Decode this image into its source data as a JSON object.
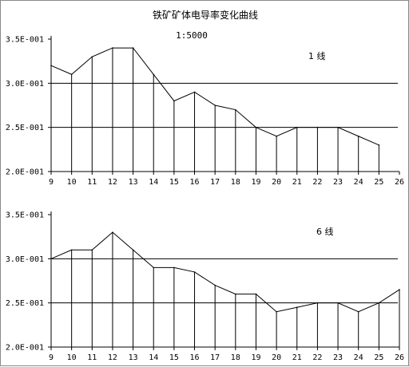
{
  "title": "铁矿矿体电导率变化曲线",
  "chart_data": [
    {
      "type": "line",
      "title": "铁矿矿体电导率变化曲线",
      "subtitle": "1:5000",
      "series_label": "1 线",
      "x": [
        9,
        10,
        11,
        12,
        13,
        14,
        15,
        16,
        17,
        18,
        19,
        20,
        21,
        22,
        23,
        24,
        25,
        26
      ],
      "x_ticks": [
        "9",
        "10",
        "11",
        "12",
        "13",
        "14",
        "15",
        "16",
        "17",
        "18",
        "19",
        "20",
        "21",
        "22",
        "23",
        "24",
        "25",
        "26"
      ],
      "series": [
        {
          "x": [
            9,
            10,
            11,
            12,
            13,
            14,
            15,
            16,
            17,
            18,
            19,
            20,
            21,
            22,
            23,
            24,
            25
          ],
          "values": [
            0.32,
            0.31,
            0.33,
            0.34,
            0.34,
            0.31,
            0.28,
            0.29,
            0.275,
            0.27,
            0.25,
            0.24,
            0.25,
            0.25,
            0.25,
            0.24,
            0.23
          ]
        }
      ],
      "ylim": [
        0.2,
        0.35
      ],
      "y_ticks": [
        "2.0E-001",
        "2.5E-001",
        "3.0E-001",
        "3.5E-001"
      ],
      "y_tick_values": [
        0.2,
        0.25,
        0.3,
        0.35
      ],
      "reference_lines": [
        0.3,
        0.25
      ],
      "drop_lines": true
    },
    {
      "type": "line",
      "series_label": "6 线",
      "x": [
        9,
        10,
        11,
        12,
        13,
        14,
        15,
        16,
        17,
        18,
        19,
        20,
        21,
        22,
        23,
        24,
        25,
        26
      ],
      "x_ticks": [
        "9",
        "10",
        "11",
        "12",
        "13",
        "14",
        "15",
        "16",
        "17",
        "18",
        "19",
        "20",
        "21",
        "22",
        "23",
        "24",
        "25",
        "26"
      ],
      "series": [
        {
          "x": [
            9,
            10,
            11,
            12,
            13,
            14,
            15,
            16,
            17,
            18,
            19,
            20,
            21,
            22,
            23,
            24,
            25,
            26
          ],
          "values": [
            0.3,
            0.31,
            0.31,
            0.33,
            0.31,
            0.29,
            0.29,
            0.285,
            0.27,
            0.26,
            0.26,
            0.24,
            0.245,
            0.25,
            0.25,
            0.24,
            0.25,
            0.265
          ]
        }
      ],
      "ylim": [
        0.2,
        0.35
      ],
      "y_ticks": [
        "2.0E-001",
        "2.5E-001",
        "3.0E-001",
        "3.5E-001"
      ],
      "y_tick_values": [
        0.2,
        0.25,
        0.3,
        0.35
      ],
      "reference_lines": [
        0.3,
        0.25
      ],
      "drop_lines": true
    }
  ]
}
